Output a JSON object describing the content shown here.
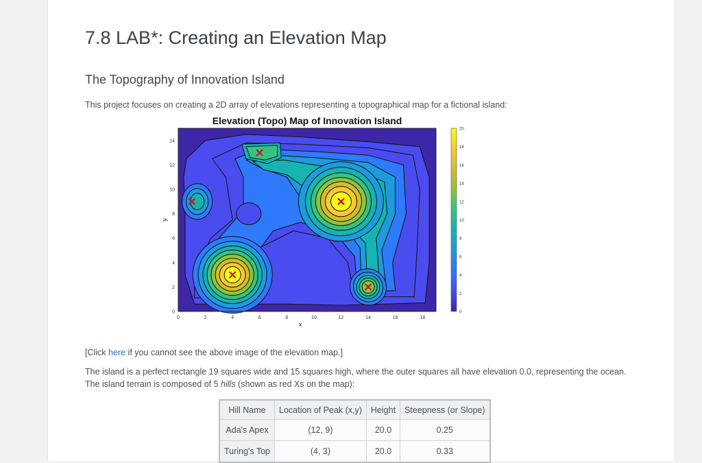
{
  "page": {
    "title": "7.8 LAB*: Creating an Elevation Map",
    "subtitle": "The Topography of Innovation Island",
    "intro": "This project focuses on creating a 2D array of elevations representing a topographical map for a fictional island:",
    "note_prefix": "[Click ",
    "note_link": "here",
    "note_suffix": " if you cannot see the above image of the elevation map.]",
    "desc_part1": "The island is a perfect rectangle 19 squares wide and 15 squares high, where the outer squares all have elevation 0.0, representing the ocean. The island terrain is composed of 5 ",
    "desc_em": "hills",
    "desc_part2": " (shown as red Xs on the map):"
  },
  "chart_data": {
    "type": "heatmap",
    "title": "Elevation (Topo) Map of Innovation Island",
    "xlabel": "x",
    "ylabel": "y",
    "xlim": [
      0,
      19
    ],
    "ylim": [
      0,
      15
    ],
    "x_ticks": [
      "0",
      "2",
      "4",
      "6",
      "8",
      "10",
      "12",
      "14",
      "16",
      "18"
    ],
    "y_ticks": [
      "0",
      "2",
      "4",
      "6",
      "8",
      "10",
      "12",
      "14"
    ],
    "colorbar_ticks": [
      "0",
      "2",
      "4",
      "6",
      "8",
      "10",
      "12",
      "14",
      "16",
      "18",
      "20"
    ],
    "colorbar_range": [
      0,
      20
    ],
    "colormap": [
      "#3e26a8",
      "#4a4cf0",
      "#2f79fb",
      "#1e9bde",
      "#15b4b0",
      "#38c281",
      "#8ec43d",
      "#d4bc2b",
      "#f9c932",
      "#f9fb15"
    ],
    "peaks": [
      {
        "x": 12,
        "y": 9,
        "height": 20
      },
      {
        "x": 4,
        "y": 3,
        "height": 20
      },
      {
        "x": 1,
        "y": 9,
        "height": 10
      },
      {
        "x": 6,
        "y": 13,
        "height": 10
      },
      {
        "x": 14,
        "y": 2,
        "height": 14
      }
    ],
    "peak_marker_color": "#c0152a"
  },
  "table": {
    "headers": [
      "Hill Name",
      "Location of Peak (x,y)",
      "Height",
      "Steepness (or Slope)"
    ],
    "rows": [
      [
        "Ada's Apex",
        "(12, 9)",
        "20.0",
        "0.25"
      ],
      [
        "Turing's Top",
        "(4, 3)",
        "20.0",
        "0.33"
      ]
    ]
  }
}
